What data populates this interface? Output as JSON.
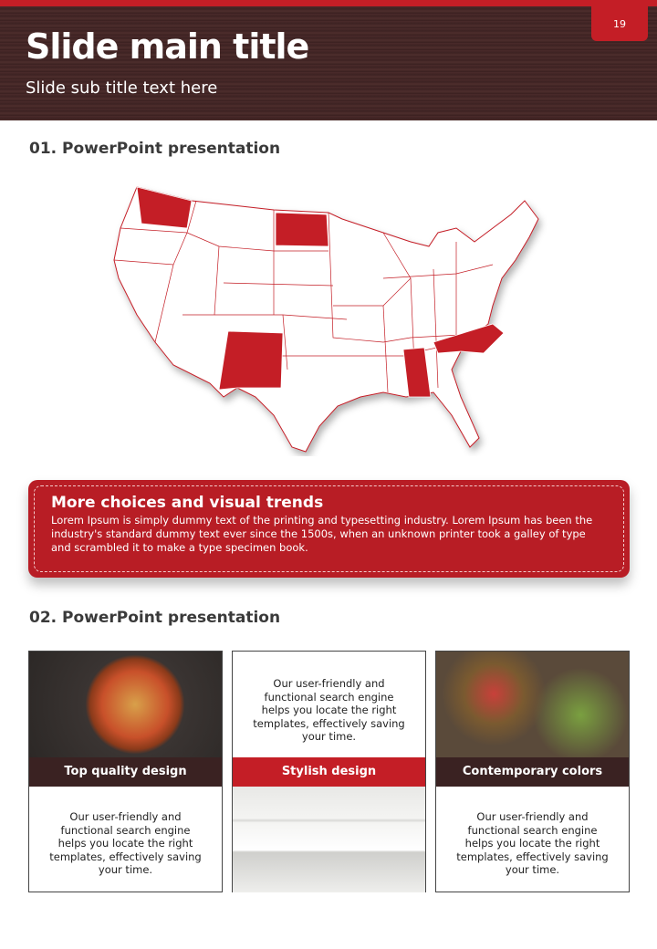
{
  "header": {
    "title": "Slide main title",
    "subtitle": "Slide sub title text here",
    "page_number": "19"
  },
  "section1": {
    "title": "01. PowerPoint presentation",
    "highlighted_states": [
      "Washington",
      "North Dakota",
      "New Mexico",
      "Alabama",
      "North Carolina"
    ]
  },
  "banner": {
    "title": "More choices and visual trends",
    "body": "Lorem Ipsum is simply dummy text of the printing and typesetting industry. Lorem Ipsum has been the industry's standard dummy text ever since the 1500s, when an unknown printer took a galley of type and scrambled it to make a type specimen book."
  },
  "section2": {
    "title": "02. PowerPoint presentation",
    "cards": [
      {
        "caption": "Top quality design",
        "text": "Our user-friendly and functional search engine helps you locate the right templates, effectively saving your time."
      },
      {
        "caption": "Stylish design",
        "text": "Our user-friendly and functional search engine helps you locate the right templates, effectively saving your time."
      },
      {
        "caption": "Contemporary colors",
        "text": "Our user-friendly and functional search engine helps you locate the right templates, effectively saving your time."
      }
    ]
  },
  "colors": {
    "accent": "#c41e26",
    "dark": "#3a2222"
  }
}
